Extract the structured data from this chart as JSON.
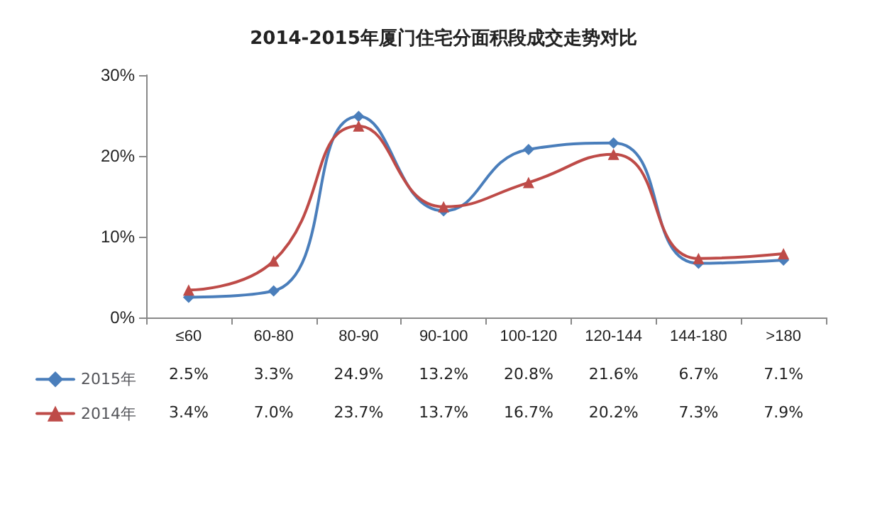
{
  "chart_data": {
    "type": "line",
    "title": "2014-2015年厦门住宅分面积段成交走势对比",
    "categories": [
      "≤60",
      "60-80",
      "80-90",
      "90-100",
      "100-120",
      "120-144",
      "144-180",
      ">180"
    ],
    "series": [
      {
        "name": "2015年",
        "color": "#4a7ebb",
        "marker": "diamond",
        "values": [
          2.5,
          3.3,
          24.9,
          13.2,
          20.8,
          21.6,
          6.7,
          7.1
        ],
        "value_labels": [
          "2.5%",
          "3.3%",
          "24.9%",
          "13.2%",
          "20.8%",
          "21.6%",
          "6.7%",
          "7.1%"
        ]
      },
      {
        "name": "2014年",
        "color": "#be4b48",
        "marker": "triangle",
        "values": [
          3.4,
          7.0,
          23.7,
          13.7,
          16.7,
          20.2,
          7.3,
          7.9
        ],
        "value_labels": [
          "3.4%",
          "7.0%",
          "23.7%",
          "13.7%",
          "16.7%",
          "20.2%",
          "7.3%",
          "7.9%"
        ]
      }
    ],
    "ylim": [
      0,
      30
    ],
    "yticks": [
      {
        "value": 0,
        "label": "0%"
      },
      {
        "value": 10,
        "label": "10%"
      },
      {
        "value": 20,
        "label": "20%"
      },
      {
        "value": 30,
        "label": "30%"
      }
    ],
    "grid": false,
    "legend": "bottom left",
    "line_style": "solid"
  }
}
